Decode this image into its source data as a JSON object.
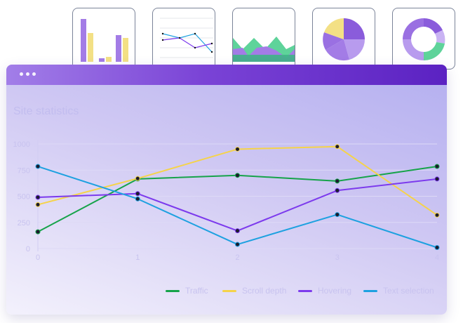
{
  "thumbnails": [
    {
      "kind": "bar"
    },
    {
      "kind": "line"
    },
    {
      "kind": "area"
    },
    {
      "kind": "pie"
    },
    {
      "kind": "donut"
    }
  ],
  "window": {
    "title": ""
  },
  "chart_data": {
    "type": "line",
    "title": "Site statistics",
    "x": [
      0,
      1,
      2,
      3,
      4
    ],
    "x_tick_labels": [
      "0",
      "1",
      "2",
      "3",
      "4"
    ],
    "y_tick_labels": [
      "0",
      "250",
      "500",
      "750",
      "1000"
    ],
    "ylim": [
      0,
      1000
    ],
    "xlim": [
      0,
      4
    ],
    "grid": true,
    "legend_position": "bottom-right",
    "series": [
      {
        "name": "Traffic",
        "color": "#16a34a",
        "values": [
          160,
          665,
          700,
          645,
          785
        ]
      },
      {
        "name": "Scroll depth",
        "color": "#f5d34a",
        "values": [
          420,
          670,
          950,
          975,
          320
        ]
      },
      {
        "name": "Hovering",
        "color": "#7c3aed",
        "values": [
          490,
          525,
          170,
          555,
          665
        ]
      },
      {
        "name": "Text selection",
        "color": "#1da1e0",
        "values": [
          785,
          475,
          40,
          325,
          10
        ]
      }
    ]
  }
}
